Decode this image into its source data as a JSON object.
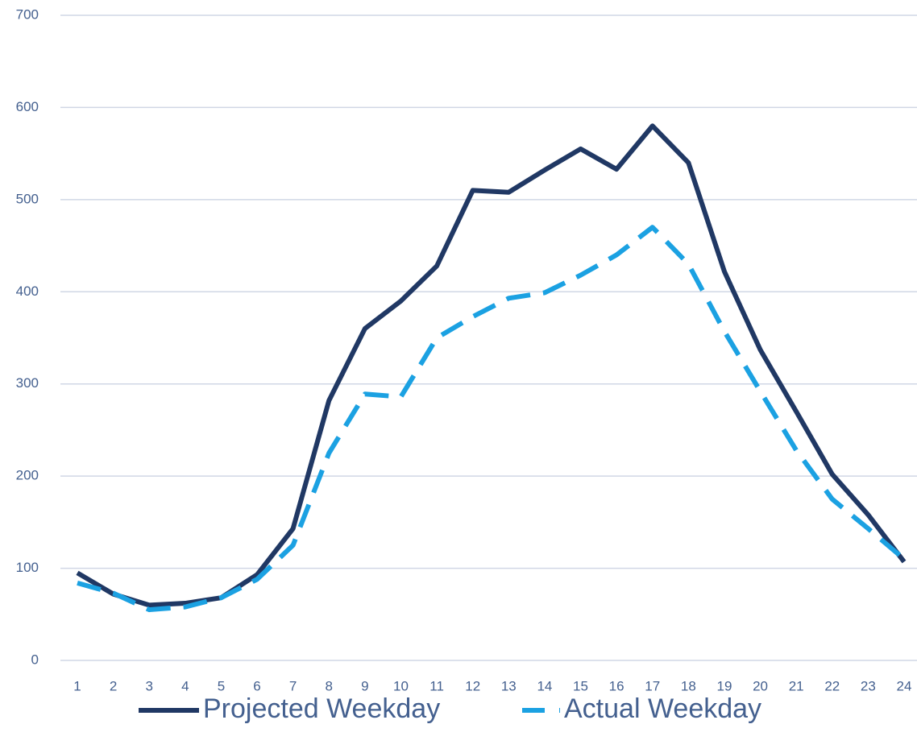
{
  "chart_data": {
    "type": "line",
    "categories": [
      "1",
      "2",
      "3",
      "4",
      "5",
      "6",
      "7",
      "8",
      "9",
      "10",
      "11",
      "12",
      "13",
      "14",
      "15",
      "16",
      "17",
      "18",
      "19",
      "20",
      "21",
      "22",
      "23",
      "24"
    ],
    "series": [
      {
        "name": "Projected Weekday",
        "color": "#203864",
        "dash": false,
        "values": [
          95,
          72,
          60,
          62,
          68,
          93,
          143,
          282,
          360,
          390,
          428,
          510,
          508,
          532,
          555,
          533,
          580,
          540,
          422,
          337,
          270,
          202,
          158,
          107
        ]
      },
      {
        "name": "Actual Weekday",
        "color": "#1ba1e2",
        "dash": true,
        "values": [
          84,
          73,
          55,
          58,
          68,
          88,
          125,
          225,
          289,
          286,
          350,
          373,
          393,
          399,
          418,
          440,
          470,
          430,
          357,
          292,
          228,
          175,
          143,
          110
        ]
      }
    ],
    "ylim": [
      0,
      700
    ],
    "yticks": [
      0,
      100,
      200,
      300,
      400,
      500,
      600,
      700
    ],
    "grid": true,
    "legend": "bottom"
  }
}
